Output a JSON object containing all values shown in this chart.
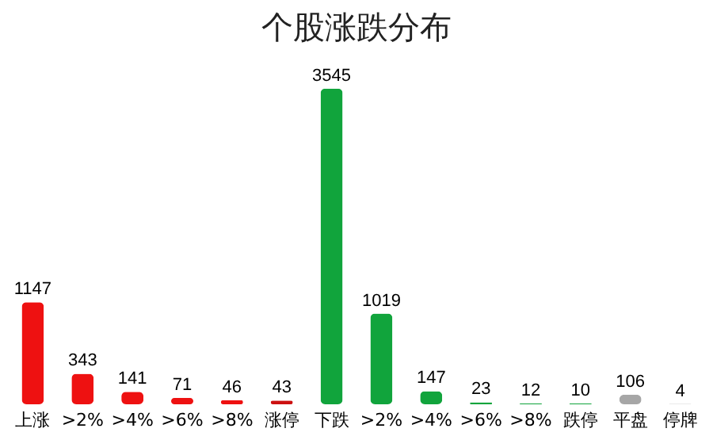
{
  "chart_data": {
    "type": "bar",
    "title": "个股涨跌分布",
    "categories": [
      "上涨",
      ">2%",
      ">4%",
      ">6%",
      ">8%",
      "涨停",
      "下跌",
      ">2%",
      ">4%",
      ">6%",
      ">8%",
      "跌停",
      "平盘",
      "停牌"
    ],
    "values": [
      1147,
      343,
      141,
      71,
      46,
      43,
      3545,
      1019,
      147,
      23,
      12,
      10,
      106,
      4
    ],
    "colors": [
      "#ee1111",
      "#ee1111",
      "#ee1111",
      "#ee1111",
      "#ee1111",
      "#cc1111",
      "#11a43c",
      "#11a43c",
      "#11a43c",
      "#11a43c",
      "#11a43c",
      "#11a43c",
      "#a6a6a6",
      "#a6a6a6"
    ],
    "data_labels": true
  }
}
